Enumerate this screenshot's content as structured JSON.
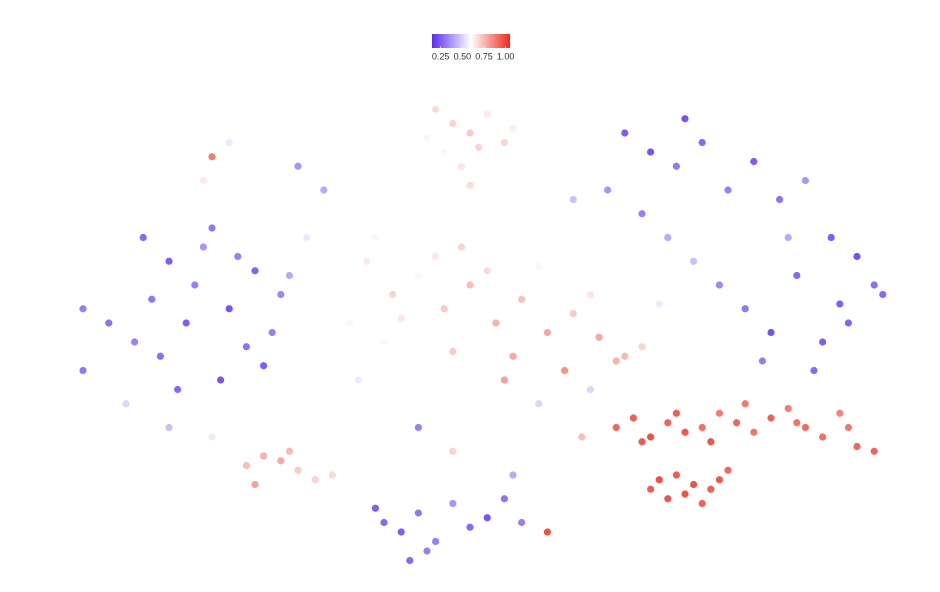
{
  "chart_data": {
    "type": "scatter",
    "xlim": [
      0,
      100
    ],
    "ylim": [
      0,
      100
    ],
    "clim": [
      0.15,
      1.05
    ],
    "colors": [
      "#5b2cf2",
      "#ffffff",
      "#ee2a1a"
    ],
    "cticks": [
      0.25,
      {
        "value": 0.5,
        "label": "0.50"
      },
      0.75,
      {
        "value": 1.0,
        "label": "1.00"
      }
    ],
    "x": [
      12,
      15,
      18,
      20,
      22,
      25,
      27,
      14,
      17,
      21,
      24,
      28,
      16,
      19,
      23,
      26,
      13,
      11,
      29,
      8,
      46,
      48,
      50,
      52,
      54,
      47,
      49,
      51,
      53,
      55,
      50,
      45,
      35,
      38,
      41,
      44,
      47,
      50,
      53,
      56,
      59,
      62,
      65,
      68,
      70,
      36,
      40,
      43,
      46,
      49,
      52,
      55,
      58,
      61,
      64,
      67,
      42,
      48,
      54,
      60,
      39,
      57,
      68,
      71,
      74,
      77,
      80,
      83,
      86,
      89,
      92,
      95,
      98,
      70,
      73,
      76,
      79,
      82,
      85,
      88,
      91,
      94,
      97,
      75,
      84,
      90,
      66,
      72,
      87,
      93,
      67,
      69,
      71,
      73,
      75,
      77,
      79,
      81,
      83,
      85,
      87,
      89,
      91,
      93,
      95,
      97,
      70,
      74,
      78,
      82,
      88,
      94,
      72,
      74,
      76,
      78,
      73,
      75,
      77,
      79,
      71,
      80,
      40,
      42,
      44,
      46,
      48,
      50,
      52,
      54,
      56,
      43,
      45,
      39,
      24,
      26,
      28,
      30,
      32,
      34,
      25,
      29,
      5,
      10,
      15,
      20,
      30,
      33,
      37,
      44,
      58,
      63,
      62,
      35,
      25,
      19,
      48,
      55,
      64,
      31,
      5,
      22,
      59,
      20
    ],
    "y": [
      70,
      65,
      60,
      72,
      55,
      63,
      50,
      45,
      52,
      40,
      47,
      58,
      38,
      68,
      66,
      43,
      57,
      48,
      62,
      52,
      97,
      94,
      92,
      96,
      90,
      88,
      85,
      89,
      86,
      93,
      81,
      91,
      60,
      65,
      58,
      62,
      55,
      60,
      52,
      57,
      50,
      54,
      49,
      45,
      47,
      52,
      48,
      70,
      66,
      68,
      63,
      45,
      64,
      42,
      58,
      44,
      53,
      46,
      40,
      60,
      70,
      68,
      92,
      88,
      85,
      90,
      80,
      86,
      78,
      82,
      70,
      66,
      58,
      75,
      70,
      65,
      60,
      55,
      50,
      62,
      48,
      52,
      60,
      95,
      44,
      42,
      80,
      56,
      70,
      56,
      30,
      32,
      28,
      31,
      29,
      30,
      33,
      31,
      29,
      32,
      34,
      30,
      28,
      33,
      26,
      25,
      27,
      33,
      27,
      35,
      31,
      30,
      19,
      20,
      18,
      17,
      15,
      16,
      14,
      19,
      17,
      21,
      10,
      8,
      12,
      6,
      14,
      9,
      11,
      15,
      10,
      2,
      4,
      13,
      22,
      24,
      23,
      21,
      19,
      20,
      18,
      25,
      55,
      35,
      30,
      28,
      85,
      80,
      40,
      30,
      35,
      28,
      78,
      30,
      80,
      82,
      25,
      20,
      38,
      70,
      42,
      90,
      8,
      87
    ],
    "values": [
      0.25,
      0.22,
      0.3,
      0.28,
      0.2,
      0.24,
      0.3,
      0.26,
      0.22,
      0.2,
      0.27,
      0.32,
      0.25,
      0.35,
      0.3,
      0.22,
      0.28,
      0.3,
      0.4,
      0.27,
      0.68,
      0.7,
      0.72,
      0.65,
      0.7,
      0.62,
      0.66,
      0.7,
      0.6,
      0.64,
      0.68,
      0.58,
      0.6,
      0.65,
      0.7,
      0.62,
      0.72,
      0.75,
      0.78,
      0.74,
      0.8,
      0.72,
      0.8,
      0.76,
      0.7,
      0.58,
      0.62,
      0.6,
      0.65,
      0.7,
      0.68,
      0.8,
      0.62,
      0.85,
      0.66,
      0.78,
      0.66,
      0.72,
      0.82,
      0.6,
      0.58,
      0.6,
      0.22,
      0.2,
      0.28,
      0.25,
      0.3,
      0.22,
      0.27,
      0.35,
      0.22,
      0.2,
      0.25,
      0.3,
      0.4,
      0.45,
      0.32,
      0.28,
      0.2,
      0.25,
      0.22,
      0.24,
      0.26,
      0.2,
      0.3,
      0.25,
      0.35,
      0.55,
      0.4,
      0.23,
      0.95,
      0.97,
      1.0,
      0.96,
      0.98,
      0.93,
      0.9,
      0.95,
      0.92,
      0.96,
      0.9,
      0.94,
      0.93,
      0.88,
      0.95,
      0.96,
      0.98,
      0.97,
      0.99,
      0.9,
      0.92,
      0.91,
      1.0,
      0.98,
      1.0,
      0.97,
      0.99,
      1.0,
      0.96,
      0.98,
      0.97,
      0.95,
      0.25,
      0.22,
      0.28,
      0.3,
      0.35,
      0.25,
      0.2,
      0.27,
      0.3,
      0.25,
      0.3,
      0.22,
      0.75,
      0.78,
      0.8,
      0.72,
      0.7,
      0.68,
      0.82,
      0.76,
      0.3,
      0.5,
      0.45,
      0.55,
      0.35,
      0.4,
      0.55,
      0.3,
      0.5,
      0.75,
      0.45,
      0.6,
      0.6,
      0.65,
      0.7,
      0.4,
      0.5,
      0.55,
      0.28,
      0.55,
      1.0,
      0.9
    ]
  }
}
